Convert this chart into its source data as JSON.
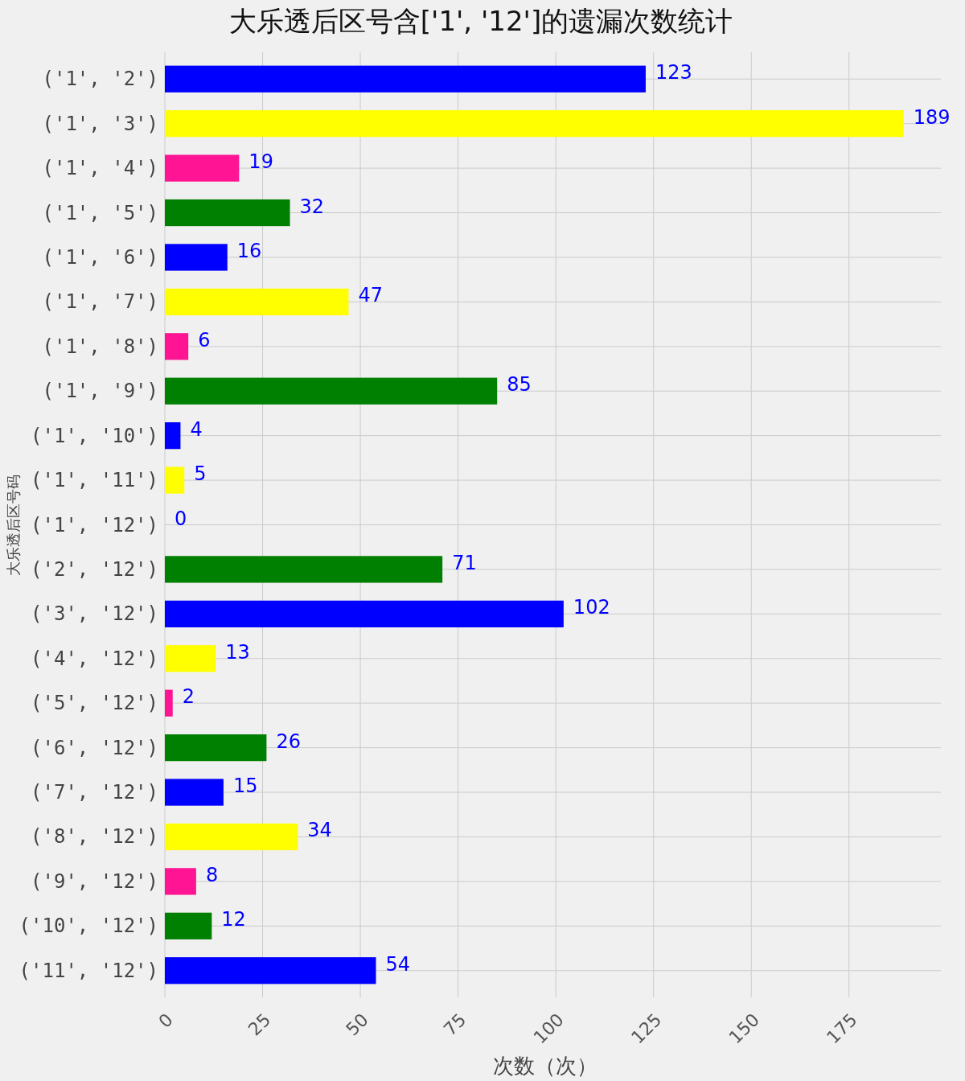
{
  "chart_data": {
    "type": "bar",
    "orientation": "horizontal",
    "title": "大乐透后区号含['1', '12']的遗漏次数统计",
    "xlabel": "次数（次）",
    "ylabel": "大乐透后区号码",
    "categories": [
      "('1', '2')",
      "('1', '3')",
      "('1', '4')",
      "('1', '5')",
      "('1', '6')",
      "('1', '7')",
      "('1', '8')",
      "('1', '9')",
      "('1', '10')",
      "('1', '11')",
      "('1', '12')",
      "('2', '12')",
      "('3', '12')",
      "('4', '12')",
      "('5', '12')",
      "('6', '12')",
      "('7', '12')",
      "('8', '12')",
      "('9', '12')",
      "('10', '12')",
      "('11', '12')"
    ],
    "values": [
      123,
      189,
      19,
      32,
      16,
      47,
      6,
      85,
      4,
      5,
      0,
      71,
      102,
      13,
      2,
      26,
      15,
      34,
      8,
      12,
      54
    ],
    "colors": [
      "#0000ff",
      "#ffff00",
      "#ff1493",
      "#008000",
      "#0000ff",
      "#ffff00",
      "#ff1493",
      "#008000",
      "#0000ff",
      "#ffff00",
      "#ff1493",
      "#008000",
      "#0000ff",
      "#ffff00",
      "#ff1493",
      "#008000",
      "#0000ff",
      "#ffff00",
      "#ff1493",
      "#008000",
      "#0000ff"
    ],
    "xlim": [
      0,
      198.5
    ],
    "xticks": [
      0,
      25,
      50,
      75,
      100,
      125,
      150,
      175
    ],
    "grid": true,
    "data_labels": true
  }
}
